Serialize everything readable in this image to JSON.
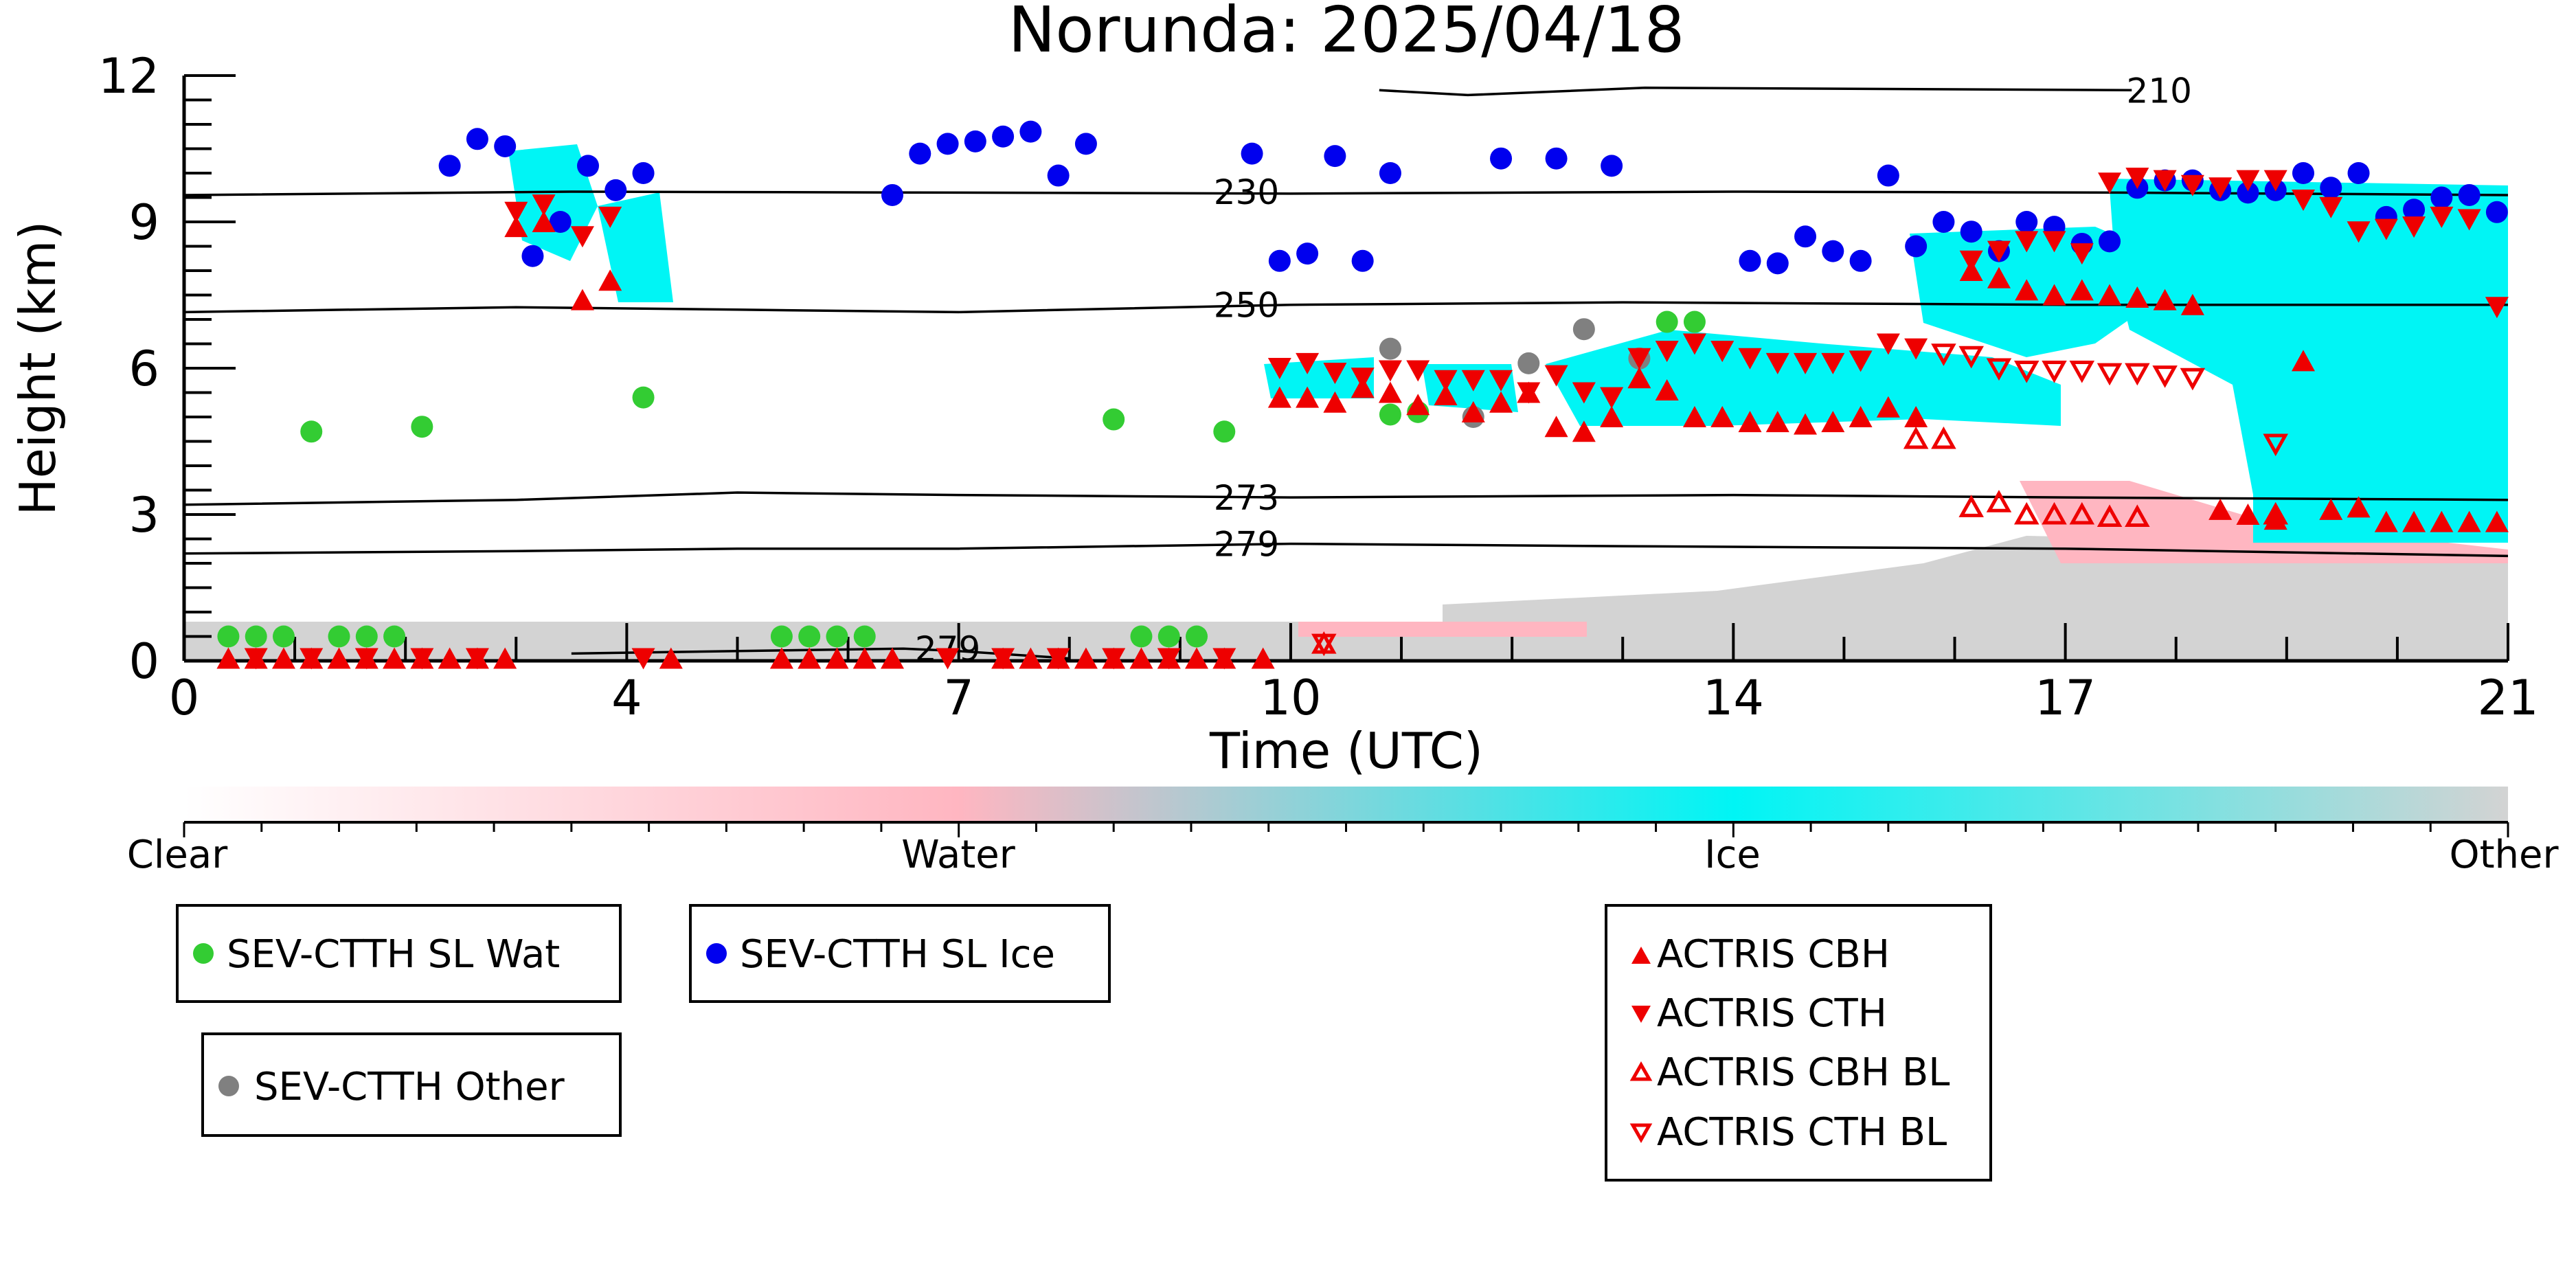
{
  "chart_data": {
    "type": "scatter",
    "title": "Norunda: 2025/04/18",
    "xlabel": "Time (UTC)",
    "ylabel": "Height (km)",
    "xlim": [
      0,
      21
    ],
    "ylim": [
      0,
      12
    ],
    "x_ticks": [
      0,
      4,
      7,
      10,
      14,
      17,
      21
    ],
    "y_ticks": [
      0,
      3,
      6,
      9,
      12
    ],
    "colorbar": {
      "labels": [
        "Clear",
        "Water",
        "Ice",
        "Other"
      ],
      "colors": [
        "#ffffff",
        "#ffb6c1",
        "#00f5f5",
        "#d3d3d3"
      ]
    },
    "contours": [
      {
        "label": "210",
        "y": [
          11.7,
          11.6,
          11.75,
          11.7
        ],
        "x": [
          10.8,
          11.6,
          13.2,
          17.6
        ]
      },
      {
        "label": "230",
        "y": [
          9.55,
          9.62,
          9.6,
          9.58,
          9.62,
          9.6,
          9.55
        ],
        "x": [
          0,
          3.5,
          7,
          10,
          14,
          17.5,
          21
        ]
      },
      {
        "label": "250",
        "y": [
          7.15,
          7.25,
          7.2,
          7.15,
          7.3,
          7.35,
          7.3,
          7.3
        ],
        "x": [
          0,
          3,
          5,
          7,
          10,
          13,
          17,
          21
        ]
      },
      {
        "label": "273",
        "y": [
          3.2,
          3.3,
          3.45,
          3.4,
          3.35,
          3.4,
          3.35,
          3.3
        ],
        "x": [
          0,
          3,
          5,
          7,
          10,
          14,
          17,
          21
        ]
      },
      {
        "label": "279",
        "y": [
          2.2,
          2.25,
          2.3,
          2.3,
          2.4,
          2.35,
          2.3,
          2.15
        ],
        "x": [
          0,
          3,
          5,
          7,
          10,
          13,
          17,
          21
        ]
      },
      {
        "label": "279",
        "y": [
          0.15,
          0.2,
          0.25,
          0.2,
          0.05
        ],
        "x": [
          3.5,
          5,
          6.5,
          7,
          8
        ]
      }
    ],
    "series": [
      {
        "name": "SEV-CTTH SL Wat",
        "color": "#33cc33",
        "marker": "circle",
        "points": [
          [
            0.4,
            0.5
          ],
          [
            0.65,
            0.5
          ],
          [
            0.9,
            0.5
          ],
          [
            1.15,
            4.7
          ],
          [
            1.4,
            0.5
          ],
          [
            1.65,
            0.5
          ],
          [
            1.9,
            0.5
          ],
          [
            2.15,
            4.8
          ],
          [
            4.15,
            5.4
          ],
          [
            5.4,
            0.5
          ],
          [
            5.65,
            0.5
          ],
          [
            5.9,
            0.5
          ],
          [
            6.15,
            0.5
          ],
          [
            8.4,
            4.95
          ],
          [
            8.65,
            0.5
          ],
          [
            8.9,
            0.5
          ],
          [
            9.15,
            0.5
          ],
          [
            9.4,
            4.7
          ],
          [
            10.9,
            5.05
          ],
          [
            11.15,
            5.1
          ],
          [
            13.4,
            6.95
          ],
          [
            13.65,
            6.95
          ]
        ]
      },
      {
        "name": "SEV-CTTH SL Ice",
        "color": "#0000ee",
        "marker": "circle",
        "points": [
          [
            2.4,
            10.15
          ],
          [
            2.65,
            10.7
          ],
          [
            2.9,
            10.55
          ],
          [
            3.15,
            8.3
          ],
          [
            3.4,
            9.0
          ],
          [
            3.65,
            10.15
          ],
          [
            3.9,
            9.65
          ],
          [
            4.15,
            10.0
          ],
          [
            6.4,
            9.55
          ],
          [
            6.65,
            10.4
          ],
          [
            6.9,
            10.6
          ],
          [
            7.15,
            10.65
          ],
          [
            7.4,
            10.75
          ],
          [
            7.65,
            10.85
          ],
          [
            7.9,
            9.95
          ],
          [
            8.15,
            10.6
          ],
          [
            9.65,
            10.4
          ],
          [
            9.9,
            8.2
          ],
          [
            10.15,
            8.35
          ],
          [
            10.4,
            10.35
          ],
          [
            10.65,
            8.2
          ],
          [
            10.9,
            10.0
          ],
          [
            11.9,
            10.3
          ],
          [
            12.4,
            10.3
          ],
          [
            12.9,
            10.15
          ],
          [
            14.15,
            8.2
          ],
          [
            14.4,
            8.15
          ],
          [
            14.65,
            8.7
          ],
          [
            14.9,
            8.4
          ],
          [
            15.15,
            8.2
          ],
          [
            15.4,
            9.95
          ],
          [
            15.65,
            8.5
          ],
          [
            15.9,
            9.0
          ],
          [
            16.15,
            8.8
          ],
          [
            16.4,
            8.4
          ],
          [
            16.65,
            9.0
          ],
          [
            16.9,
            8.9
          ],
          [
            17.15,
            8.55
          ],
          [
            17.4,
            8.6
          ],
          [
            17.65,
            9.7
          ],
          [
            17.9,
            9.85
          ],
          [
            18.15,
            9.85
          ],
          [
            18.4,
            9.65
          ],
          [
            18.65,
            9.6
          ],
          [
            18.9,
            9.65
          ],
          [
            19.15,
            10.0
          ],
          [
            19.4,
            9.7
          ],
          [
            19.65,
            10.0
          ],
          [
            19.9,
            9.1
          ],
          [
            20.15,
            9.25
          ],
          [
            20.4,
            9.5
          ],
          [
            20.65,
            9.55
          ],
          [
            20.9,
            9.2
          ]
        ]
      },
      {
        "name": "SEV-CTTH Other",
        "color": "#808080",
        "marker": "circle",
        "points": [
          [
            10.9,
            6.4
          ],
          [
            11.65,
            5.0
          ],
          [
            12.15,
            6.1
          ],
          [
            12.65,
            6.8
          ],
          [
            13.15,
            6.2
          ]
        ]
      },
      {
        "name": "ACTRIS CBH",
        "color": "#ee0000",
        "marker": "triangle-up",
        "points": [
          [
            0.4,
            0.05
          ],
          [
            0.65,
            0.05
          ],
          [
            0.9,
            0.05
          ],
          [
            1.15,
            0.05
          ],
          [
            1.4,
            0.05
          ],
          [
            1.65,
            0.05
          ],
          [
            1.9,
            0.05
          ],
          [
            2.15,
            0.05
          ],
          [
            2.4,
            0.05
          ],
          [
            2.65,
            0.05
          ],
          [
            2.9,
            0.05
          ],
          [
            3.0,
            8.9
          ],
          [
            3.25,
            9.0
          ],
          [
            3.6,
            7.4
          ],
          [
            3.85,
            7.8
          ],
          [
            4.4,
            0.05
          ],
          [
            5.4,
            0.05
          ],
          [
            5.65,
            0.05
          ],
          [
            5.9,
            0.05
          ],
          [
            6.15,
            0.05
          ],
          [
            6.4,
            0.05
          ],
          [
            7.4,
            0.05
          ],
          [
            7.65,
            0.05
          ],
          [
            7.9,
            0.05
          ],
          [
            8.15,
            0.05
          ],
          [
            8.4,
            0.05
          ],
          [
            8.65,
            0.05
          ],
          [
            8.9,
            0.05
          ],
          [
            9.15,
            0.05
          ],
          [
            9.4,
            0.05
          ],
          [
            9.75,
            0.05
          ],
          [
            9.9,
            5.4
          ],
          [
            10.15,
            5.4
          ],
          [
            10.4,
            5.3
          ],
          [
            10.65,
            5.6
          ],
          [
            10.9,
            5.5
          ],
          [
            11.15,
            5.25
          ],
          [
            11.4,
            5.45
          ],
          [
            11.65,
            5.1
          ],
          [
            11.9,
            5.3
          ],
          [
            12.15,
            5.5
          ],
          [
            12.4,
            4.8
          ],
          [
            12.65,
            4.7
          ],
          [
            12.9,
            5.0
          ],
          [
            13.15,
            5.8
          ],
          [
            13.4,
            5.55
          ],
          [
            13.65,
            5.0
          ],
          [
            13.9,
            5.0
          ],
          [
            14.15,
            4.9
          ],
          [
            14.4,
            4.9
          ],
          [
            14.65,
            4.85
          ],
          [
            14.9,
            4.9
          ],
          [
            15.15,
            5.0
          ],
          [
            15.4,
            5.2
          ],
          [
            15.65,
            5.0
          ],
          [
            16.15,
            8.0
          ],
          [
            16.4,
            7.85
          ],
          [
            16.65,
            7.6
          ],
          [
            16.9,
            7.5
          ],
          [
            17.15,
            7.6
          ],
          [
            17.4,
            7.5
          ],
          [
            17.65,
            7.45
          ],
          [
            17.9,
            7.4
          ],
          [
            18.15,
            7.3
          ],
          [
            18.4,
            3.1
          ],
          [
            18.65,
            3.0
          ],
          [
            18.9,
            2.9
          ],
          [
            19.15,
            6.15
          ],
          [
            19.4,
            3.1
          ],
          [
            19.65,
            3.15
          ],
          [
            19.9,
            2.85
          ],
          [
            20.15,
            2.85
          ],
          [
            20.4,
            2.85
          ],
          [
            20.65,
            2.85
          ],
          [
            20.9,
            2.85
          ]
        ]
      },
      {
        "name": "ACTRIS CTH",
        "color": "#ee0000",
        "marker": "triangle-down",
        "points": [
          [
            0.65,
            0.05
          ],
          [
            1.15,
            0.05
          ],
          [
            1.65,
            0.05
          ],
          [
            2.15,
            0.05
          ],
          [
            2.65,
            0.05
          ],
          [
            3.0,
            9.2
          ],
          [
            3.25,
            9.35
          ],
          [
            3.6,
            8.7
          ],
          [
            3.85,
            9.1
          ],
          [
            4.15,
            0.05
          ],
          [
            6.9,
            0.05
          ],
          [
            7.4,
            0.05
          ],
          [
            7.9,
            0.05
          ],
          [
            8.4,
            0.05
          ],
          [
            8.9,
            0.05
          ],
          [
            9.4,
            0.05
          ],
          [
            9.9,
            6.0
          ],
          [
            10.15,
            6.1
          ],
          [
            10.4,
            5.9
          ],
          [
            10.65,
            5.8
          ],
          [
            10.9,
            5.95
          ],
          [
            11.15,
            5.95
          ],
          [
            11.4,
            5.75
          ],
          [
            11.65,
            5.75
          ],
          [
            11.9,
            5.75
          ],
          [
            12.15,
            5.5
          ],
          [
            12.4,
            5.85
          ],
          [
            12.65,
            5.5
          ],
          [
            12.9,
            5.4
          ],
          [
            13.15,
            6.2
          ],
          [
            13.4,
            6.35
          ],
          [
            13.65,
            6.5
          ],
          [
            13.9,
            6.35
          ],
          [
            14.15,
            6.2
          ],
          [
            14.4,
            6.1
          ],
          [
            14.65,
            6.1
          ],
          [
            14.9,
            6.1
          ],
          [
            15.15,
            6.15
          ],
          [
            15.4,
            6.5
          ],
          [
            15.65,
            6.4
          ],
          [
            16.15,
            8.2
          ],
          [
            16.4,
            8.4
          ],
          [
            16.65,
            8.6
          ],
          [
            16.9,
            8.6
          ],
          [
            17.15,
            8.35
          ],
          [
            17.4,
            9.8
          ],
          [
            17.65,
            9.9
          ],
          [
            17.9,
            9.85
          ],
          [
            18.15,
            9.75
          ],
          [
            18.4,
            9.7
          ],
          [
            18.65,
            9.85
          ],
          [
            18.9,
            9.85
          ],
          [
            19.15,
            9.45
          ],
          [
            19.4,
            9.3
          ],
          [
            19.65,
            8.8
          ],
          [
            19.9,
            8.85
          ],
          [
            20.15,
            8.9
          ],
          [
            20.4,
            9.1
          ],
          [
            20.65,
            9.05
          ],
          [
            20.9,
            7.25
          ]
        ]
      },
      {
        "name": "ACTRIS CBH BL",
        "color": "#ee0000",
        "marker": "triangle-up-open",
        "points": [
          [
            10.3,
            0.35
          ],
          [
            15.65,
            4.55
          ],
          [
            15.9,
            4.55
          ],
          [
            16.15,
            3.15
          ],
          [
            16.4,
            3.25
          ],
          [
            16.65,
            3.0
          ],
          [
            16.9,
            3.0
          ],
          [
            17.15,
            3.0
          ],
          [
            17.4,
            2.95
          ],
          [
            17.65,
            2.95
          ],
          [
            18.9,
            3.0
          ]
        ]
      },
      {
        "name": "ACTRIS CTH BL",
        "color": "#ee0000",
        "marker": "triangle-down-open",
        "points": [
          [
            10.3,
            0.35
          ],
          [
            15.9,
            6.3
          ],
          [
            16.15,
            6.25
          ],
          [
            16.4,
            6.0
          ],
          [
            16.65,
            5.95
          ],
          [
            16.9,
            5.95
          ],
          [
            17.15,
            5.95
          ],
          [
            17.4,
            5.9
          ],
          [
            17.65,
            5.9
          ],
          [
            17.9,
            5.85
          ],
          [
            18.15,
            5.8
          ],
          [
            18.9,
            4.45
          ]
        ]
      }
    ],
    "legend": [
      {
        "group": "sev-water",
        "entries": [
          "SEV-CTTH SL Wat"
        ]
      },
      {
        "group": "sev-ice",
        "entries": [
          "SEV-CTTH SL Ice"
        ]
      },
      {
        "group": "sev-other",
        "entries": [
          "SEV-CTTH Other"
        ]
      },
      {
        "group": "actris",
        "entries": [
          "ACTRIS CBH",
          "ACTRIS CTH",
          "ACTRIS CBH BL",
          "ACTRIS CTH BL"
        ]
      }
    ]
  }
}
